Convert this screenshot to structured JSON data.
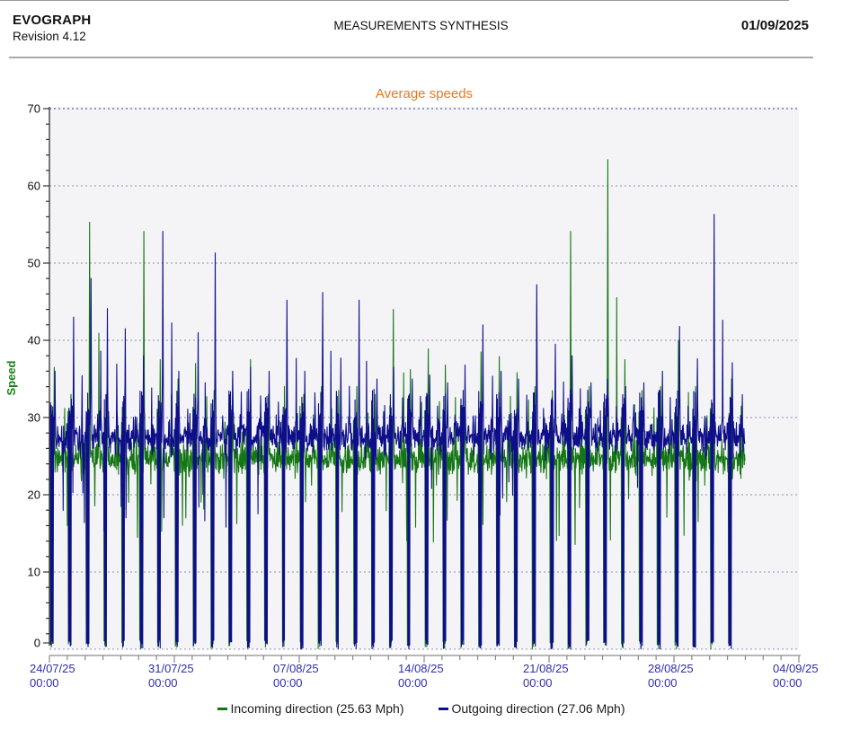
{
  "header": {
    "app_name": "EVOGRAPH",
    "revision": "Revision 4.12",
    "title": "MEASUREMENTS SYNTHESIS",
    "date": "01/09/2025"
  },
  "chart_data": {
    "type": "line",
    "title": "Average speeds",
    "ylabel": "Speed",
    "ylim": [
      0,
      70
    ],
    "yticks": [
      0,
      10,
      20,
      30,
      40,
      50,
      60,
      70
    ],
    "y_minor_step": 2,
    "x_start": "24/07/25 00:00",
    "x_end": "04/09/25 00:00",
    "x_total_days": 42,
    "data_days": 39,
    "x_major_tick_days": 7,
    "x_minor_tick_days": 1,
    "grid": "horizontal dotted lines at every 10 units",
    "legend_position": "bottom-center",
    "xticks": [
      {
        "date": "24/07/25",
        "time": "00:00"
      },
      {
        "date": "31/07/25",
        "time": "00:00"
      },
      {
        "date": "07/08/25",
        "time": "00:00"
      },
      {
        "date": "14/08/25",
        "time": "00:00"
      },
      {
        "date": "21/08/25",
        "time": "00:00"
      },
      {
        "date": "28/08/25",
        "time": "00:00"
      },
      {
        "date": "04/09/25",
        "time": "00:00"
      }
    ],
    "pattern_note": "Dense sub-hourly samples 24/07 00:00 through 01/09 00:00; both series oscillate in a 22-31 Mph band, collapse to 0 during a nightly window (~01:00-05:00) forming narrow full-height columns, and show isolated morning/evening spikes whose daily maxima are listed per series.",
    "series": [
      {
        "name": "Incoming direction (25.63 Mph)",
        "direction": "incoming",
        "mean_mph": 25.63,
        "baseline": 25.1,
        "color": "#147614",
        "daily_peaks": [
          36.5,
          33,
          55.3,
          33.5,
          34,
          54.1,
          37.5,
          35,
          37,
          33.5,
          35,
          37.5,
          33,
          34,
          33,
          34,
          33.5,
          34,
          33,
          44,
          36.2,
          38.9,
          36.8,
          34,
          38.5,
          37.9,
          35.8,
          34,
          33.5,
          54.1,
          34,
          63.4,
          37.5,
          33.5,
          34,
          40,
          34,
          35,
          35
        ]
      },
      {
        "name": "Outgoing direction (27.06 Mph)",
        "direction": "outgoing",
        "mean_mph": 27.06,
        "baseline": 27.2,
        "color": "#0e0e8a",
        "daily_peaks": [
          36,
          43,
          48,
          44.1,
          41.5,
          38,
          54.1,
          36,
          41,
          51.3,
          36,
          36.5,
          36,
          45.2,
          36,
          46.2,
          37.7,
          45.2,
          35,
          36.5,
          35,
          35.5,
          34.5,
          36.8,
          42,
          36,
          35,
          47.2,
          39.5,
          38,
          34.5,
          35,
          34,
          34.5,
          36,
          41.8,
          37.6,
          56.3,
          37.1
        ]
      }
    ],
    "colors": {
      "title": "#e8781e",
      "ylabel": "#168016",
      "xtick_label": "#2f2fa8",
      "ytick_label": "#111111",
      "grid_top": "#3c3c96",
      "grid": "#8b8bc0",
      "plot_bg": "#f4f4f6",
      "y_axis": "#333333",
      "x_axis": "#8a8a8a"
    }
  }
}
